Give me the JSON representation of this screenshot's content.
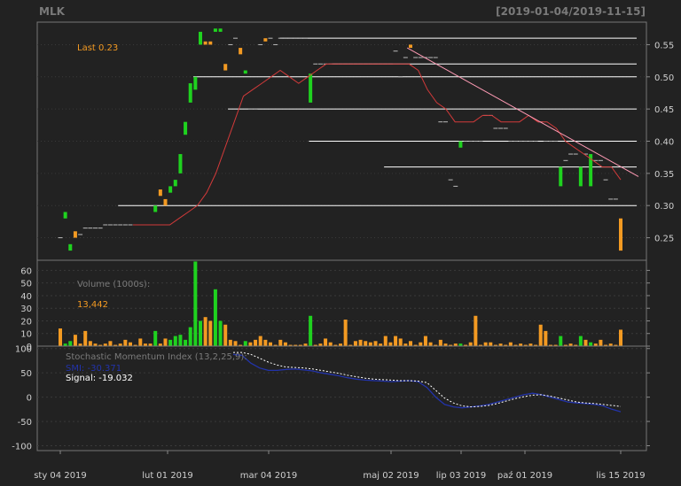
{
  "title": "MLK",
  "date_range": "[2019-01-04/2019-11-15]",
  "colors": {
    "background": "#222222",
    "up": "#1fd21f",
    "down": "#f39a22",
    "grid": "#3a3a3a",
    "frame": "#777777",
    "ma": "#d23a3a",
    "trend": "#ff9bb5",
    "smi": "#2233aa",
    "signal": "#ffffff",
    "last": "#f39a22"
  },
  "price_panel": {
    "last_label": "Last 0.23",
    "y_ticks": [
      "0.25",
      "0.30",
      "0.35",
      "0.40",
      "0.45",
      "0.50",
      "0.55"
    ],
    "ylim": [
      0.215,
      0.585
    ]
  },
  "volume_panel": {
    "label": "Volume (1000s):",
    "last_value": "13,442",
    "y_ticks": [
      "0",
      "10",
      "20",
      "30",
      "40",
      "50",
      "60"
    ],
    "ylim": [
      0,
      68
    ]
  },
  "smi_panel": {
    "label": "Stochastic Momentum Index (13,2,25,9):",
    "smi_label": "SMI: -30.371",
    "signal_label": "Signal: -19.032",
    "y_ticks": [
      "-100",
      "-50",
      "0",
      "50",
      "100"
    ],
    "ylim": [
      -110,
      105
    ]
  },
  "x_labels": [
    "sty 04 2019",
    "lut 01 2019",
    "mar 04 2019",
    "maj 02 2019",
    "lip 03 2019",
    "paź 01 2019",
    "lis 15 2019"
  ],
  "chart_data": {
    "type": "candlestick",
    "x_labels": [
      "sty 04 2019",
      "lut 01 2019",
      "mar 04 2019",
      "maj 02 2019",
      "lip 03 2019",
      "paź 01 2019",
      "lis 15 2019"
    ],
    "candles": [
      {
        "o": 0.25,
        "c": 0.25,
        "v": 14
      },
      {
        "o": 0.28,
        "c": 0.29,
        "v": 2
      },
      {
        "o": 0.23,
        "c": 0.24,
        "v": 4
      },
      {
        "o": 0.26,
        "c": 0.25,
        "v": 9
      },
      {
        "o": 0.255,
        "c": 0.255,
        "v": 2
      },
      {
        "o": 0.265,
        "c": 0.265,
        "v": 12
      },
      {
        "o": 0.265,
        "c": 0.265,
        "v": 4
      },
      {
        "o": 0.265,
        "c": 0.265,
        "v": 2
      },
      {
        "o": 0.265,
        "c": 0.265,
        "v": 1
      },
      {
        "o": 0.27,
        "c": 0.27,
        "v": 2
      },
      {
        "o": 0.27,
        "c": 0.27,
        "v": 4
      },
      {
        "o": 0.27,
        "c": 0.27,
        "v": 1
      },
      {
        "o": 0.27,
        "c": 0.27,
        "v": 2
      },
      {
        "o": 0.27,
        "c": 0.27,
        "v": 5
      },
      {
        "o": 0.27,
        "c": 0.27,
        "v": 3
      },
      {
        "o": 0.27,
        "c": 0.27,
        "v": 1
      },
      {
        "o": 0.27,
        "c": 0.27,
        "v": 6
      },
      {
        "o": 0.27,
        "c": 0.27,
        "v": 2
      },
      {
        "o": 0.27,
        "c": 0.27,
        "v": 2
      },
      {
        "o": 0.29,
        "c": 0.3,
        "v": 12
      },
      {
        "o": 0.325,
        "c": 0.315,
        "v": 2
      },
      {
        "o": 0.31,
        "c": 0.3,
        "v": 6
      },
      {
        "o": 0.32,
        "c": 0.33,
        "v": 5
      },
      {
        "o": 0.33,
        "c": 0.34,
        "v": 8
      },
      {
        "o": 0.35,
        "c": 0.38,
        "v": 9
      },
      {
        "o": 0.41,
        "c": 0.43,
        "v": 5
      },
      {
        "o": 0.46,
        "c": 0.49,
        "v": 15
      },
      {
        "o": 0.48,
        "c": 0.5,
        "v": 67
      },
      {
        "o": 0.55,
        "c": 0.57,
        "v": 20
      },
      {
        "o": 0.555,
        "c": 0.55,
        "v": 23
      },
      {
        "o": 0.555,
        "c": 0.55,
        "v": 20
      },
      {
        "o": 0.57,
        "c": 0.575,
        "v": 45
      },
      {
        "o": 0.57,
        "c": 0.575,
        "v": 20
      },
      {
        "o": 0.52,
        "c": 0.51,
        "v": 17
      },
      {
        "o": 0.55,
        "c": 0.55,
        "v": 5
      },
      {
        "o": 0.56,
        "c": 0.56,
        "v": 4
      },
      {
        "o": 0.545,
        "c": 0.535,
        "v": 1
      },
      {
        "o": 0.505,
        "c": 0.51,
        "v": 4
      },
      {
        "o": 0.45,
        "c": 0.45,
        "v": 3
      },
      {
        "o": 0.45,
        "c": 0.45,
        "v": 5
      },
      {
        "o": 0.55,
        "c": 0.55,
        "v": 8
      },
      {
        "o": 0.56,
        "c": 0.555,
        "v": 5
      },
      {
        "o": 0.56,
        "c": 0.56,
        "v": 3
      },
      {
        "o": 0.55,
        "c": 0.55,
        "v": 1
      },
      {
        "o": 0.56,
        "c": 0.56,
        "v": 5
      },
      {
        "o": 0.56,
        "c": 0.56,
        "v": 3
      },
      {
        "o": 0.56,
        "c": 0.56,
        "v": 1
      },
      {
        "o": 0.56,
        "c": 0.56,
        "v": 1
      },
      {
        "o": 0.56,
        "c": 0.56,
        "v": 1
      },
      {
        "o": 0.56,
        "c": 0.56,
        "v": 2
      },
      {
        "o": 0.46,
        "c": 0.505,
        "v": 24
      },
      {
        "o": 0.52,
        "c": 0.52,
        "v": 1
      },
      {
        "o": 0.52,
        "c": 0.52,
        "v": 2
      },
      {
        "o": 0.52,
        "c": 0.52,
        "v": 6
      },
      {
        "o": 0.52,
        "c": 0.52,
        "v": 3
      },
      {
        "o": 0.52,
        "c": 0.52,
        "v": 1
      },
      {
        "o": 0.52,
        "c": 0.52,
        "v": 2
      },
      {
        "o": 0.52,
        "c": 0.52,
        "v": 21
      },
      {
        "o": 0.52,
        "c": 0.52,
        "v": 1
      },
      {
        "o": 0.52,
        "c": 0.52,
        "v": 4
      },
      {
        "o": 0.52,
        "c": 0.52,
        "v": 5
      },
      {
        "o": 0.52,
        "c": 0.52,
        "v": 4
      },
      {
        "o": 0.52,
        "c": 0.52,
        "v": 3
      },
      {
        "o": 0.52,
        "c": 0.52,
        "v": 4
      },
      {
        "o": 0.52,
        "c": 0.52,
        "v": 2
      },
      {
        "o": 0.52,
        "c": 0.52,
        "v": 8
      },
      {
        "o": 0.52,
        "c": 0.52,
        "v": 3
      },
      {
        "o": 0.54,
        "c": 0.54,
        "v": 8
      },
      {
        "o": 0.5,
        "c": 0.5,
        "v": 6
      },
      {
        "o": 0.53,
        "c": 0.53,
        "v": 2
      },
      {
        "o": 0.55,
        "c": 0.545,
        "v": 4
      },
      {
        "o": 0.53,
        "c": 0.53,
        "v": 1
      },
      {
        "o": 0.53,
        "c": 0.53,
        "v": 3
      },
      {
        "o": 0.53,
        "c": 0.53,
        "v": 8
      },
      {
        "o": 0.53,
        "c": 0.53,
        "v": 3
      },
      {
        "o": 0.53,
        "c": 0.53,
        "v": 1
      },
      {
        "o": 0.43,
        "c": 0.43,
        "v": 5
      },
      {
        "o": 0.43,
        "c": 0.43,
        "v": 2
      },
      {
        "o": 0.34,
        "c": 0.34,
        "v": 1
      },
      {
        "o": 0.33,
        "c": 0.33,
        "v": 2
      },
      {
        "o": 0.39,
        "c": 0.4,
        "v": 2
      },
      {
        "o": 0.4,
        "c": 0.4,
        "v": 1
      },
      {
        "o": 0.4,
        "c": 0.4,
        "v": 3
      },
      {
        "o": 0.4,
        "c": 0.4,
        "v": 24
      },
      {
        "o": 0.4,
        "c": 0.4,
        "v": 1
      },
      {
        "o": 0.44,
        "c": 0.44,
        "v": 3
      },
      {
        "o": 0.44,
        "c": 0.44,
        "v": 3
      },
      {
        "o": 0.42,
        "c": 0.42,
        "v": 1
      },
      {
        "o": 0.42,
        "c": 0.42,
        "v": 2
      },
      {
        "o": 0.42,
        "c": 0.42,
        "v": 1
      },
      {
        "o": 0.4,
        "c": 0.4,
        "v": 3
      },
      {
        "o": 0.4,
        "c": 0.4,
        "v": 1
      },
      {
        "o": 0.4,
        "c": 0.4,
        "v": 2
      },
      {
        "o": 0.4,
        "c": 0.4,
        "v": 1
      },
      {
        "o": 0.4,
        "c": 0.4,
        "v": 2
      },
      {
        "o": 0.4,
        "c": 0.4,
        "v": 1
      },
      {
        "o": 0.43,
        "c": 0.43,
        "v": 17
      },
      {
        "o": 0.4,
        "c": 0.4,
        "v": 12
      },
      {
        "o": 0.4,
        "c": 0.4,
        "v": 1
      },
      {
        "o": 0.4,
        "c": 0.4,
        "v": 1
      },
      {
        "o": 0.33,
        "c": 0.36,
        "v": 8
      },
      {
        "o": 0.37,
        "c": 0.37,
        "v": 1
      },
      {
        "o": 0.38,
        "c": 0.38,
        "v": 2
      },
      {
        "o": 0.38,
        "c": 0.38,
        "v": 1
      },
      {
        "o": 0.33,
        "c": 0.36,
        "v": 8
      },
      {
        "o": 0.38,
        "c": 0.38,
        "v": 5
      },
      {
        "o": 0.33,
        "c": 0.38,
        "v": 3
      },
      {
        "o": 0.37,
        "c": 0.37,
        "v": 2
      },
      {
        "o": 0.37,
        "c": 0.37,
        "v": 5
      },
      {
        "o": 0.34,
        "c": 0.34,
        "v": 1
      },
      {
        "o": 0.31,
        "c": 0.31,
        "v": 2
      },
      {
        "o": 0.31,
        "c": 0.31,
        "v": 1
      },
      {
        "o": 0.28,
        "c": 0.23,
        "v": 13
      }
    ],
    "horizontal_lines": [
      {
        "y": 0.56,
        "x_from_index": 0.38
      },
      {
        "y": 0.52,
        "x_from_index": 0.47
      },
      {
        "y": 0.5,
        "x_from_index": 0.23
      },
      {
        "y": 0.45,
        "x_from_index": 0.29
      },
      {
        "y": 0.4,
        "x_from_index": 0.43
      },
      {
        "y": 0.36,
        "x_from_index": 0.56
      },
      {
        "y": 0.3,
        "x_from_index": 0.1
      }
    ],
    "trendline": {
      "from": [
        0.6,
        0.545
      ],
      "to": [
        1.0,
        0.345
      ]
    },
    "ma": [
      0.27,
      0.27,
      0.27,
      0.27,
      0.27,
      0.28,
      0.29,
      0.3,
      0.32,
      0.35,
      0.39,
      0.43,
      0.47,
      0.48,
      0.49,
      0.5,
      0.51,
      0.5,
      0.49,
      0.5,
      0.51,
      0.52,
      0.52,
      0.52,
      0.52,
      0.52,
      0.52,
      0.52,
      0.52,
      0.52,
      0.52,
      0.51,
      0.48,
      0.46,
      0.45,
      0.43,
      0.43,
      0.43,
      0.44,
      0.44,
      0.43,
      0.43,
      0.43,
      0.44,
      0.43,
      0.43,
      0.42,
      0.4,
      0.39,
      0.38,
      0.37,
      0.36,
      0.36,
      0.34
    ],
    "smi": [
      88,
      86,
      70,
      60,
      55,
      55,
      57,
      58,
      56,
      54,
      50,
      47,
      44,
      40,
      37,
      35,
      34,
      33,
      32,
      33,
      34,
      32,
      20,
      0,
      -15,
      -20,
      -22,
      -20,
      -18,
      -15,
      -10,
      -5,
      0,
      5,
      8,
      5,
      0,
      -5,
      -10,
      -12,
      -13,
      -15,
      -18,
      -25,
      -30
    ],
    "signal": [
      92,
      92,
      88,
      80,
      72,
      66,
      62,
      61,
      60,
      58,
      55,
      52,
      49,
      45,
      42,
      39,
      37,
      36,
      35,
      34,
      34,
      33,
      30,
      14,
      -2,
      -12,
      -18,
      -20,
      -19,
      -17,
      -13,
      -8,
      -3,
      1,
      4,
      5,
      2,
      -2,
      -6,
      -10,
      -12,
      -13,
      -15,
      -17,
      -19
    ]
  }
}
